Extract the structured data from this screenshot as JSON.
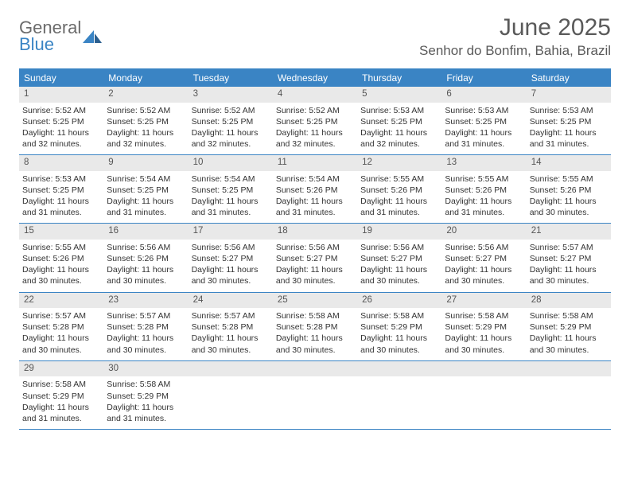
{
  "logo": {
    "word1": "General",
    "word2": "Blue"
  },
  "title": "June 2025",
  "location": "Senhor do Bonfim, Bahia, Brazil",
  "colors": {
    "accent": "#3a84c4",
    "header_text": "#ffffff",
    "daynum_bg": "#e9e9e9",
    "text": "#333333",
    "title_text": "#5a5a5a"
  },
  "day_headers": [
    "Sunday",
    "Monday",
    "Tuesday",
    "Wednesday",
    "Thursday",
    "Friday",
    "Saturday"
  ],
  "weeks": [
    [
      {
        "n": "1",
        "sr": "Sunrise: 5:52 AM",
        "ss": "Sunset: 5:25 PM",
        "dl": "Daylight: 11 hours and 32 minutes."
      },
      {
        "n": "2",
        "sr": "Sunrise: 5:52 AM",
        "ss": "Sunset: 5:25 PM",
        "dl": "Daylight: 11 hours and 32 minutes."
      },
      {
        "n": "3",
        "sr": "Sunrise: 5:52 AM",
        "ss": "Sunset: 5:25 PM",
        "dl": "Daylight: 11 hours and 32 minutes."
      },
      {
        "n": "4",
        "sr": "Sunrise: 5:52 AM",
        "ss": "Sunset: 5:25 PM",
        "dl": "Daylight: 11 hours and 32 minutes."
      },
      {
        "n": "5",
        "sr": "Sunrise: 5:53 AM",
        "ss": "Sunset: 5:25 PM",
        "dl": "Daylight: 11 hours and 32 minutes."
      },
      {
        "n": "6",
        "sr": "Sunrise: 5:53 AM",
        "ss": "Sunset: 5:25 PM",
        "dl": "Daylight: 11 hours and 31 minutes."
      },
      {
        "n": "7",
        "sr": "Sunrise: 5:53 AM",
        "ss": "Sunset: 5:25 PM",
        "dl": "Daylight: 11 hours and 31 minutes."
      }
    ],
    [
      {
        "n": "8",
        "sr": "Sunrise: 5:53 AM",
        "ss": "Sunset: 5:25 PM",
        "dl": "Daylight: 11 hours and 31 minutes."
      },
      {
        "n": "9",
        "sr": "Sunrise: 5:54 AM",
        "ss": "Sunset: 5:25 PM",
        "dl": "Daylight: 11 hours and 31 minutes."
      },
      {
        "n": "10",
        "sr": "Sunrise: 5:54 AM",
        "ss": "Sunset: 5:25 PM",
        "dl": "Daylight: 11 hours and 31 minutes."
      },
      {
        "n": "11",
        "sr": "Sunrise: 5:54 AM",
        "ss": "Sunset: 5:26 PM",
        "dl": "Daylight: 11 hours and 31 minutes."
      },
      {
        "n": "12",
        "sr": "Sunrise: 5:55 AM",
        "ss": "Sunset: 5:26 PM",
        "dl": "Daylight: 11 hours and 31 minutes."
      },
      {
        "n": "13",
        "sr": "Sunrise: 5:55 AM",
        "ss": "Sunset: 5:26 PM",
        "dl": "Daylight: 11 hours and 31 minutes."
      },
      {
        "n": "14",
        "sr": "Sunrise: 5:55 AM",
        "ss": "Sunset: 5:26 PM",
        "dl": "Daylight: 11 hours and 30 minutes."
      }
    ],
    [
      {
        "n": "15",
        "sr": "Sunrise: 5:55 AM",
        "ss": "Sunset: 5:26 PM",
        "dl": "Daylight: 11 hours and 30 minutes."
      },
      {
        "n": "16",
        "sr": "Sunrise: 5:56 AM",
        "ss": "Sunset: 5:26 PM",
        "dl": "Daylight: 11 hours and 30 minutes."
      },
      {
        "n": "17",
        "sr": "Sunrise: 5:56 AM",
        "ss": "Sunset: 5:27 PM",
        "dl": "Daylight: 11 hours and 30 minutes."
      },
      {
        "n": "18",
        "sr": "Sunrise: 5:56 AM",
        "ss": "Sunset: 5:27 PM",
        "dl": "Daylight: 11 hours and 30 minutes."
      },
      {
        "n": "19",
        "sr": "Sunrise: 5:56 AM",
        "ss": "Sunset: 5:27 PM",
        "dl": "Daylight: 11 hours and 30 minutes."
      },
      {
        "n": "20",
        "sr": "Sunrise: 5:56 AM",
        "ss": "Sunset: 5:27 PM",
        "dl": "Daylight: 11 hours and 30 minutes."
      },
      {
        "n": "21",
        "sr": "Sunrise: 5:57 AM",
        "ss": "Sunset: 5:27 PM",
        "dl": "Daylight: 11 hours and 30 minutes."
      }
    ],
    [
      {
        "n": "22",
        "sr": "Sunrise: 5:57 AM",
        "ss": "Sunset: 5:28 PM",
        "dl": "Daylight: 11 hours and 30 minutes."
      },
      {
        "n": "23",
        "sr": "Sunrise: 5:57 AM",
        "ss": "Sunset: 5:28 PM",
        "dl": "Daylight: 11 hours and 30 minutes."
      },
      {
        "n": "24",
        "sr": "Sunrise: 5:57 AM",
        "ss": "Sunset: 5:28 PM",
        "dl": "Daylight: 11 hours and 30 minutes."
      },
      {
        "n": "25",
        "sr": "Sunrise: 5:58 AM",
        "ss": "Sunset: 5:28 PM",
        "dl": "Daylight: 11 hours and 30 minutes."
      },
      {
        "n": "26",
        "sr": "Sunrise: 5:58 AM",
        "ss": "Sunset: 5:29 PM",
        "dl": "Daylight: 11 hours and 30 minutes."
      },
      {
        "n": "27",
        "sr": "Sunrise: 5:58 AM",
        "ss": "Sunset: 5:29 PM",
        "dl": "Daylight: 11 hours and 30 minutes."
      },
      {
        "n": "28",
        "sr": "Sunrise: 5:58 AM",
        "ss": "Sunset: 5:29 PM",
        "dl": "Daylight: 11 hours and 30 minutes."
      }
    ],
    [
      {
        "n": "29",
        "sr": "Sunrise: 5:58 AM",
        "ss": "Sunset: 5:29 PM",
        "dl": "Daylight: 11 hours and 31 minutes."
      },
      {
        "n": "30",
        "sr": "Sunrise: 5:58 AM",
        "ss": "Sunset: 5:29 PM",
        "dl": "Daylight: 11 hours and 31 minutes."
      },
      {
        "empty": true
      },
      {
        "empty": true
      },
      {
        "empty": true
      },
      {
        "empty": true
      },
      {
        "empty": true
      }
    ]
  ]
}
